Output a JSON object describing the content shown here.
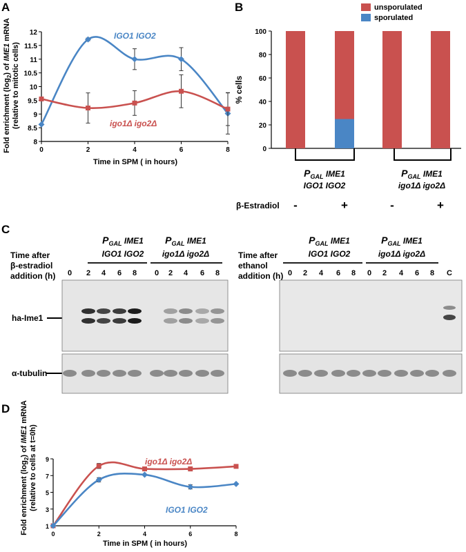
{
  "panels": {
    "a": {
      "letter": "A",
      "ylabel_line1_pre": "Fold enrichment (log",
      "ylabel_sub": "2",
      "ylabel_line1_mid": ") of ",
      "ylabel_line1_gene": "IME1",
      "ylabel_line1_post": " mRNA",
      "ylabel_line2": "(relative to mitotic cells)",
      "xlabel": "Time in SPM ( in hours)",
      "label_wt": "IGO1 IGO2",
      "label_mut": "igo1Δ igo2Δ"
    },
    "b": {
      "letter": "B",
      "ylabel": "% cells",
      "legend_unsporulated": "unsporulated",
      "legend_sporulated": "sporulated",
      "group1_line1_p": "P",
      "group1_line1_sub": "GAL",
      "group1_line1_gene": " IME1",
      "group1_line2": "IGO1 IGO2",
      "group2_line1_p": "P",
      "group2_line1_sub": "GAL",
      "group2_line1_gene": " IME1",
      "group2_line2": "igo1Δ igo2Δ",
      "estradiol_label": "β-Estradiol",
      "signs": [
        "-",
        "+",
        "-",
        "+"
      ]
    },
    "c": {
      "letter": "C",
      "left_time_label": [
        "Time after",
        "β-estradiol",
        "addition (h)"
      ],
      "right_time_label": [
        "Time after",
        "ethanol",
        "addition (h)"
      ],
      "strain1_line1_p": "P",
      "strain1_line1_sub": "GAL",
      "strain1_line1_gene": " IME1",
      "strain1_line2": "IGO1 IGO2",
      "strain2_line1_p": "P",
      "strain2_line1_sub": "GAL",
      "strain2_line1_gene": " IME1",
      "strain2_line2": "igo1Δ igo2Δ",
      "lane_labels": [
        "0",
        "2",
        "4",
        "6",
        "8"
      ],
      "control_lane": "C",
      "band_ime1": "ha-Ime1",
      "band_tubulin": "α-tubulin"
    },
    "d": {
      "letter": "D",
      "ylabel_line1_pre": "Fold enrichment (log",
      "ylabel_sub": "2",
      "ylabel_line1_mid": ") of ",
      "ylabel_line1_gene": "IME1",
      "ylabel_line1_post": " mRNA",
      "ylabel_line2": "(relative to cells at t=0h)",
      "xlabel": "Time in SPM ( in hours)",
      "label_wt": "IGO1 IGO2",
      "label_mut": "igo1Δ igo2Δ"
    }
  },
  "colors": {
    "blue": "#4a86c5",
    "red": "#c9514f",
    "blot_bg": "#e6e6e6",
    "band": "#1c1c1c"
  },
  "chart_data": [
    {
      "panel": "A",
      "type": "line",
      "x": [
        0,
        2,
        4,
        6,
        8
      ],
      "ylim": [
        8,
        12
      ],
      "yticks": [
        8,
        8.5,
        9,
        9.5,
        10,
        10.5,
        11,
        11.5,
        12
      ],
      "xticks": [
        0,
        2,
        4,
        6,
        8
      ],
      "series": [
        {
          "name": "IGO1 IGO2",
          "color": "#4a86c5",
          "values": [
            8.62,
            11.72,
            11.0,
            11.0,
            9.02
          ],
          "errors": [
            0.0,
            0.05,
            0.38,
            0.42,
            0.75
          ]
        },
        {
          "name": "igo1Δ igo2Δ",
          "color": "#c9514f",
          "values": [
            9.55,
            9.22,
            9.4,
            9.83,
            9.18
          ],
          "errors": [
            0.0,
            0.55,
            0.45,
            0.6,
            0.6
          ]
        }
      ]
    },
    {
      "panel": "B",
      "type": "bar",
      "stacked": true,
      "ylim": [
        0,
        100
      ],
      "yticks": [
        0,
        20,
        40,
        60,
        80,
        100
      ],
      "series": [
        {
          "name": "sporulated",
          "color": "#4a86c5",
          "values": [
            0,
            25,
            0,
            0
          ]
        },
        {
          "name": "unsporulated",
          "color": "#c9514f",
          "values": [
            100,
            75,
            100,
            100
          ]
        }
      ]
    },
    {
      "panel": "D",
      "type": "line",
      "x": [
        0,
        2,
        4,
        6,
        8
      ],
      "ylim": [
        1,
        9
      ],
      "yticks": [
        1,
        3,
        5,
        7,
        9
      ],
      "xticks": [
        0,
        2,
        4,
        6,
        8
      ],
      "series": [
        {
          "name": "igo1Δ igo2Δ",
          "color": "#c9514f",
          "values": [
            1.0,
            8.15,
            7.8,
            7.8,
            8.1
          ],
          "errors": [
            0.0,
            0.3,
            0.0,
            0.25,
            0.2
          ]
        },
        {
          "name": "IGO1 IGO2",
          "color": "#4a86c5",
          "values": [
            1.0,
            6.5,
            7.1,
            5.65,
            6.0
          ],
          "errors": [
            0.0,
            0.25,
            0.0,
            0.25,
            0.0
          ]
        }
      ]
    }
  ]
}
